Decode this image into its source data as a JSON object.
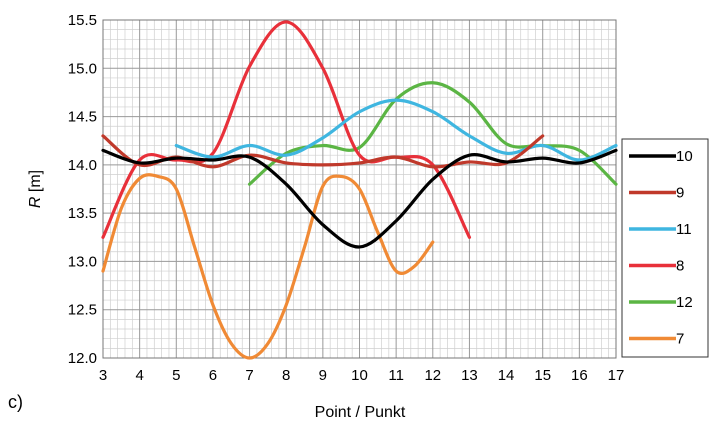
{
  "panel_label": "c)",
  "chart_data": {
    "type": "line",
    "xlabel": "Point / Punkt",
    "ylabel_italic": "R",
    "ylabel_unit": " [m]",
    "xlim": [
      3,
      17
    ],
    "ylim": [
      12.0,
      15.5
    ],
    "x_ticks": [
      "3",
      "4",
      "5",
      "6",
      "7",
      "8",
      "9",
      "10",
      "11",
      "12",
      "13",
      "14",
      "15",
      "16",
      "17"
    ],
    "y_ticks": [
      "12.0",
      "12.5",
      "13.0",
      "13.5",
      "14.0",
      "14.5",
      "15.0",
      "15.5"
    ],
    "grid": true,
    "legend_position": "right",
    "series": [
      {
        "name": "10",
        "color": "#000000",
        "x": [
          3,
          4,
          5,
          6,
          7,
          8,
          9,
          10,
          11,
          12,
          13,
          14,
          15,
          16,
          17
        ],
        "y": [
          14.15,
          14.02,
          14.07,
          14.05,
          14.08,
          13.8,
          13.38,
          13.15,
          13.42,
          13.85,
          14.1,
          14.03,
          14.07,
          14.02,
          14.15
        ]
      },
      {
        "name": "9",
        "color": "#c0392b",
        "x": [
          3,
          4,
          5,
          6,
          7,
          8,
          9,
          10,
          11,
          12,
          13,
          14,
          15
        ],
        "y": [
          14.3,
          14.0,
          14.08,
          13.98,
          14.1,
          14.02,
          14.0,
          14.02,
          14.08,
          13.98,
          14.03,
          14.02,
          14.3
        ]
      },
      {
        "name": "11",
        "color": "#3fb6e0",
        "x": [
          5,
          6,
          7,
          8,
          9,
          10,
          11,
          12,
          13,
          14,
          15,
          16,
          17
        ],
        "y": [
          14.2,
          14.08,
          14.2,
          14.1,
          14.28,
          14.55,
          14.67,
          14.55,
          14.3,
          14.12,
          14.2,
          14.05,
          14.2
        ]
      },
      {
        "name": "8",
        "color": "#e8303a",
        "x": [
          3,
          4,
          5,
          6,
          7,
          8,
          9,
          10,
          11,
          12,
          13
        ],
        "y": [
          13.25,
          14.05,
          14.05,
          14.12,
          15.02,
          15.48,
          15.0,
          14.1,
          14.08,
          14.0,
          13.25
        ]
      },
      {
        "name": "12",
        "color": "#5bb544",
        "x": [
          7,
          8,
          9,
          10,
          11,
          12,
          13,
          14,
          15,
          16,
          17
        ],
        "y": [
          13.8,
          14.12,
          14.2,
          14.18,
          14.68,
          14.85,
          14.65,
          14.22,
          14.2,
          14.15,
          13.8
        ]
      },
      {
        "name": "7",
        "color": "#f08a35",
        "x": [
          3,
          3.5,
          4,
          4.5,
          5,
          5.5,
          6,
          6.5,
          7,
          7.5,
          8,
          8.5,
          9,
          9.5,
          10,
          10.5,
          11,
          11.5,
          12
        ],
        "y": [
          12.9,
          13.55,
          13.86,
          13.88,
          13.75,
          13.15,
          12.55,
          12.15,
          12.0,
          12.15,
          12.55,
          13.15,
          13.78,
          13.88,
          13.75,
          13.3,
          12.9,
          12.95,
          13.2
        ]
      }
    ]
  }
}
